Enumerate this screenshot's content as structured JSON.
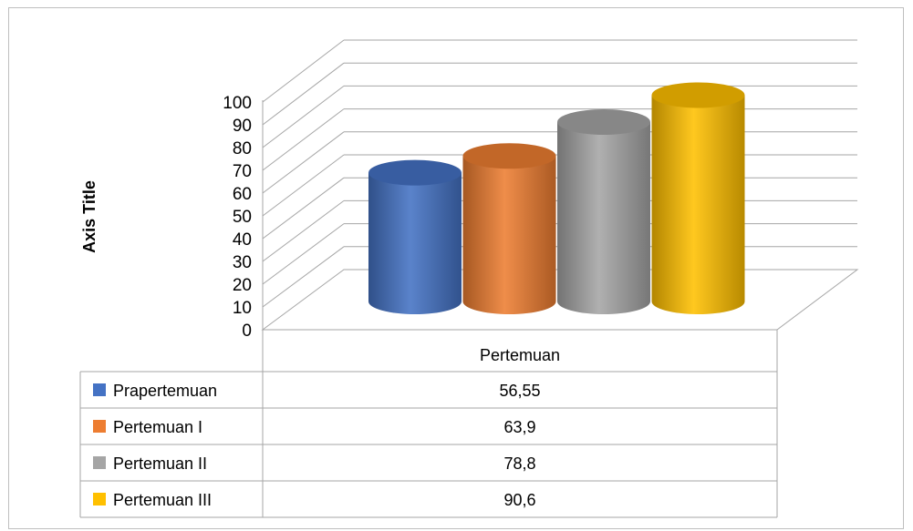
{
  "chart_data": {
    "type": "bar",
    "style": "3d-cylinder with data table",
    "categories": [
      "Pertemuan"
    ],
    "series": [
      {
        "name": "Prapertemuan",
        "values": [
          56.55
        ],
        "label": "56,55",
        "color": "#4472c4"
      },
      {
        "name": "Pertemuan I",
        "values": [
          63.9
        ],
        "label": "63,9",
        "color": "#ed7d31"
      },
      {
        "name": "Pertemuan II",
        "values": [
          78.8
        ],
        "label": "78,8",
        "color": "#a5a5a5"
      },
      {
        "name": "Pertemuan III",
        "values": [
          90.6
        ],
        "label": "90,6",
        "color": "#ffc000"
      }
    ],
    "ylabel": "Axis Title",
    "ylim": [
      0,
      100
    ],
    "yticks": [
      "0",
      "10",
      "20",
      "30",
      "40",
      "50",
      "60",
      "70",
      "80",
      "90",
      "100"
    ],
    "grid": true,
    "legend": "data table with legend keys"
  }
}
